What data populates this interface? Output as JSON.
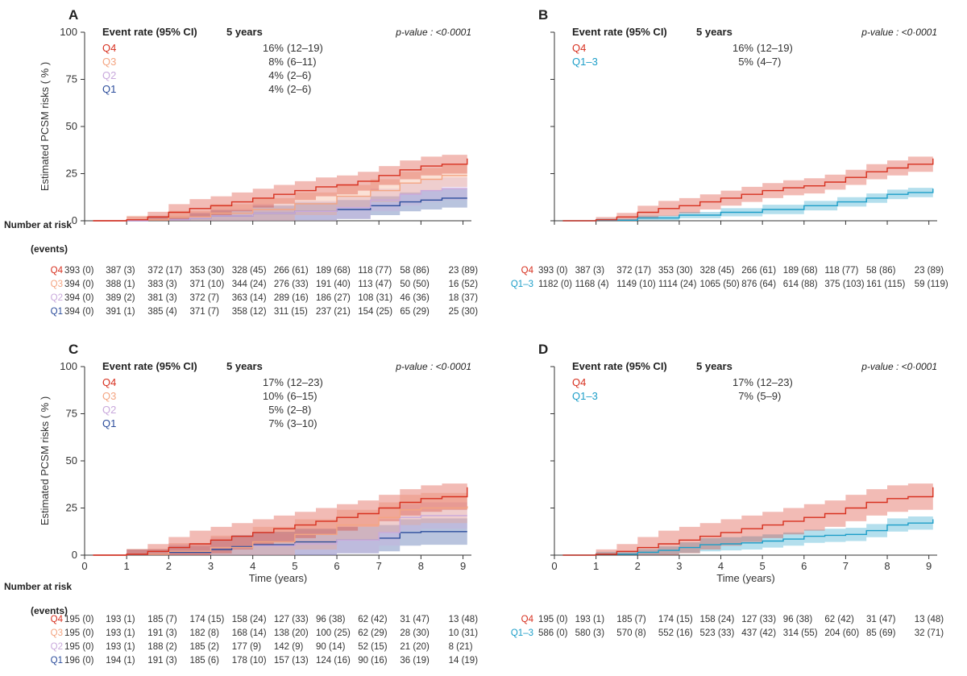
{
  "common": {
    "ylabel": "Estimated PCSM risks ( % )",
    "xlabel": "Time (years)",
    "risk_title_line1": "Number at risk",
    "risk_title_line2": "(events)",
    "header_event": "Event rate (95% CI)",
    "header_years": "5 years",
    "pvalue": "p-value : <0·0001"
  },
  "colors": {
    "Q4": "#d7301f",
    "Q3": "#f4a582",
    "Q2": "#c9a9dc",
    "Q1": "#2b4c9b",
    "Q1-3": "#1c9ec8"
  },
  "chart_data": [
    {
      "panel": "A",
      "type": "line",
      "xlim": [
        0,
        9.2
      ],
      "ylim": [
        0,
        100
      ],
      "yticks": [
        0,
        25,
        50,
        75,
        100
      ],
      "xticks": [],
      "show_xlabel": false,
      "legend": [
        {
          "label": "Q4",
          "rate": "16% (12–19)"
        },
        {
          "label": "Q3",
          "rate": "8% (6–11)"
        },
        {
          "label": "Q2",
          "rate": "4% (2–6)"
        },
        {
          "label": "Q1",
          "rate": "4% (2–6)"
        }
      ],
      "series": [
        {
          "name": "Q1",
          "x": [
            0.2,
            1.5,
            2.5,
            3,
            4,
            5,
            6,
            6.8,
            7.5,
            8,
            8.5,
            9.1
          ],
          "y": [
            0,
            0.5,
            1.5,
            2.5,
            4,
            5,
            6,
            8,
            10,
            11,
            12,
            12
          ],
          "band": 5
        },
        {
          "name": "Q2",
          "x": [
            0.2,
            1.5,
            2.5,
            3,
            4,
            5,
            6,
            6.8,
            7.5,
            8,
            8.5,
            9.1
          ],
          "y": [
            0,
            0.5,
            1.5,
            2.5,
            4,
            5,
            7,
            11,
            14,
            16,
            17,
            17
          ],
          "band": 6
        },
        {
          "name": "Q3",
          "x": [
            0.2,
            1,
            2,
            3,
            4,
            5,
            6,
            6.8,
            7.5,
            8,
            8.5,
            9.1
          ],
          "y": [
            0,
            0.5,
            2,
            4,
            6,
            9,
            13,
            16,
            20,
            22,
            24,
            24
          ],
          "band": 6
        },
        {
          "name": "Q4",
          "x": [
            0.2,
            1,
            1.5,
            2,
            2.5,
            3,
            3.5,
            4,
            4.5,
            5,
            5.5,
            6,
            6.5,
            7,
            7.5,
            8,
            8.5,
            9.1
          ],
          "y": [
            0,
            0.5,
            2,
            4.5,
            6.5,
            8,
            10,
            12,
            14,
            16,
            18,
            19,
            21,
            24,
            27,
            29,
            30,
            33
          ],
          "band": 5
        }
      ],
      "risk_table": [
        {
          "label": "Q4",
          "values": [
            "393 (0)",
            "387 (3)",
            "372 (17)",
            "353 (30)",
            "328 (45)",
            "266 (61)",
            "189 (68)",
            "118 (77)",
            "58 (86)",
            "23 (89)"
          ]
        },
        {
          "label": "Q3",
          "values": [
            "394 (0)",
            "388 (1)",
            "383 (3)",
            "371 (10)",
            "344 (24)",
            "276 (33)",
            "191 (40)",
            "113 (47)",
            "50 (50)",
            "16 (52)"
          ]
        },
        {
          "label": "Q2",
          "values": [
            "394 (0)",
            "389 (2)",
            "381 (3)",
            "372 (7)",
            "363 (14)",
            "289 (16)",
            "186 (27)",
            "108 (31)",
            "46 (36)",
            "18 (37)"
          ]
        },
        {
          "label": "Q1",
          "values": [
            "394 (0)",
            "391 (1)",
            "385 (4)",
            "371 (7)",
            "358 (12)",
            "311 (15)",
            "237 (21)",
            "154 (25)",
            "65 (29)",
            "25 (30)"
          ]
        }
      ]
    },
    {
      "panel": "B",
      "type": "line",
      "xlim": [
        0,
        9.2
      ],
      "ylim": [
        0,
        100
      ],
      "yticks": [
        0,
        25,
        50,
        75,
        100
      ],
      "xticks": [],
      "show_xlabel": false,
      "legend": [
        {
          "label": "Q4",
          "rate": "16% (12–19)"
        },
        {
          "label": "Q1–3",
          "rate": "5% (4–7)"
        }
      ],
      "series": [
        {
          "name": "Q1-3",
          "x": [
            0.2,
            1,
            2,
            3,
            4,
            5,
            6,
            6.8,
            7.5,
            8,
            8.5,
            9.1
          ],
          "y": [
            0,
            0.3,
            1.5,
            3,
            4.5,
            6,
            8,
            10,
            12,
            14,
            15,
            17
          ],
          "band": 2.5
        },
        {
          "name": "Q4",
          "x": [
            0.2,
            1,
            1.5,
            2,
            2.5,
            3,
            3.5,
            4,
            4.5,
            5,
            5.5,
            6,
            6.5,
            7,
            7.5,
            8,
            8.5,
            9.1
          ],
          "y": [
            0,
            0.5,
            2,
            4.5,
            6.5,
            8,
            10,
            12,
            14,
            16,
            17.5,
            18.5,
            20.5,
            23,
            26,
            28,
            30,
            33
          ],
          "band": 4
        }
      ],
      "risk_table": [
        {
          "label": "Q4",
          "values": [
            "393 (0)",
            "387 (3)",
            "372 (17)",
            "353 (30)",
            "328 (45)",
            "266 (61)",
            "189 (68)",
            "118 (77)",
            "58 (86)",
            "23 (89)"
          ]
        },
        {
          "label": "Q1–3",
          "values": [
            "1182 (0)",
            "1168 (4)",
            "1149 (10)",
            "1114 (24)",
            "1065 (50)",
            "876 (64)",
            "614 (88)",
            "375 (103)",
            "161 (115)",
            "59 (119)"
          ]
        }
      ]
    },
    {
      "panel": "C",
      "type": "line",
      "xlim": [
        0,
        9.2
      ],
      "ylim": [
        0,
        100
      ],
      "yticks": [
        0,
        25,
        50,
        75,
        100
      ],
      "xticks": [
        0,
        1,
        2,
        3,
        4,
        5,
        6,
        7,
        8,
        9
      ],
      "show_xlabel": true,
      "legend": [
        {
          "label": "Q4",
          "rate": "17% (12–23)"
        },
        {
          "label": "Q3",
          "rate": "10% (6–15)"
        },
        {
          "label": "Q2",
          "rate": "5% (2–8)"
        },
        {
          "label": "Q1",
          "rate": "7% (3–10)"
        }
      ],
      "series": [
        {
          "name": "Q1",
          "x": [
            0.2,
            1,
            2,
            3,
            3.5,
            4,
            5,
            6,
            7,
            7.5,
            8,
            9.1
          ],
          "y": [
            0,
            0.5,
            1.5,
            3,
            4.5,
            5.5,
            7,
            8,
            9,
            12,
            12.5,
            12.5
          ],
          "band": 7
        },
        {
          "name": "Q2",
          "x": [
            0.2,
            1,
            2,
            3,
            4,
            5,
            6,
            7,
            7.5,
            8,
            9.1
          ],
          "y": [
            0,
            0.5,
            2,
            4,
            5,
            6,
            8,
            12,
            20,
            21,
            21
          ],
          "band": 7
        },
        {
          "name": "Q3",
          "x": [
            0.2,
            1,
            2,
            3,
            4,
            5,
            6,
            7,
            7.5,
            8,
            9.1
          ],
          "y": [
            0,
            0.5,
            2,
            4,
            7,
            11,
            16,
            20,
            24,
            25,
            26
          ],
          "band": 8
        },
        {
          "name": "Q4",
          "x": [
            0.2,
            1,
            1.5,
            2,
            2.5,
            3,
            3.5,
            4,
            4.5,
            5,
            5.5,
            6,
            6.5,
            7,
            7.5,
            8,
            8.5,
            9.1
          ],
          "y": [
            0,
            0.5,
            2,
            4,
            6,
            8,
            10,
            12,
            14,
            16,
            18,
            20,
            22,
            25,
            28,
            30,
            31,
            36
          ],
          "band": 7
        }
      ],
      "risk_table": [
        {
          "label": "Q4",
          "values": [
            "195 (0)",
            "193 (1)",
            "185 (7)",
            "174 (15)",
            "158 (24)",
            "127 (33)",
            "96 (38)",
            "62 (42)",
            "31 (47)",
            "13 (48)"
          ]
        },
        {
          "label": "Q3",
          "values": [
            "195 (0)",
            "193 (1)",
            "191 (3)",
            "182 (8)",
            "168 (14)",
            "138 (20)",
            "100 (25)",
            "62 (29)",
            "28 (30)",
            "10 (31)"
          ]
        },
        {
          "label": "Q2",
          "values": [
            "195 (0)",
            "193 (1)",
            "188 (2)",
            "185 (2)",
            "177 (9)",
            "142 (9)",
            "90 (14)",
            "52 (15)",
            "21 (20)",
            "8 (21)"
          ]
        },
        {
          "label": "Q1",
          "values": [
            "196 (0)",
            "194 (1)",
            "191 (3)",
            "185 (6)",
            "178 (10)",
            "157 (13)",
            "124 (16)",
            "90 (16)",
            "36 (19)",
            "14 (19)"
          ]
        }
      ]
    },
    {
      "panel": "D",
      "type": "line",
      "xlim": [
        0,
        9.2
      ],
      "ylim": [
        0,
        100
      ],
      "yticks": [
        0,
        25,
        50,
        75,
        100
      ],
      "xticks": [
        0,
        1,
        2,
        3,
        4,
        5,
        6,
        7,
        8,
        9
      ],
      "show_xlabel": true,
      "legend": [
        {
          "label": "Q4",
          "rate": "17% (12–23)"
        },
        {
          "label": "Q1–3",
          "rate": "7% (5–9)"
        }
      ],
      "series": [
        {
          "name": "Q1-3",
          "x": [
            0.2,
            1,
            2,
            2.5,
            3,
            3.5,
            4,
            4.5,
            5,
            5.5,
            6,
            6.5,
            7,
            7.5,
            8,
            8.5,
            9.1
          ],
          "y": [
            0,
            0.5,
            1.5,
            2.5,
            4,
            5.5,
            6,
            6.5,
            7.5,
            8.5,
            10,
            10.5,
            11,
            13,
            16,
            17,
            19
          ],
          "band": 3.5
        },
        {
          "name": "Q4",
          "x": [
            0.2,
            1,
            1.5,
            2,
            2.5,
            3,
            3.5,
            4,
            4.5,
            5,
            5.5,
            6,
            6.5,
            7,
            7.5,
            8,
            8.5,
            9.1
          ],
          "y": [
            0,
            0.5,
            2,
            4,
            6,
            8,
            10,
            12,
            14,
            16,
            18,
            20,
            22,
            25,
            28,
            30,
            31,
            36
          ],
          "band": 7
        }
      ],
      "risk_table": [
        {
          "label": "Q4",
          "values": [
            "195 (0)",
            "193 (1)",
            "185 (7)",
            "174 (15)",
            "158 (24)",
            "127 (33)",
            "96 (38)",
            "62 (42)",
            "31 (47)",
            "13 (48)"
          ]
        },
        {
          "label": "Q1–3",
          "values": [
            "586 (0)",
            "580 (3)",
            "570 (8)",
            "552 (16)",
            "523 (33)",
            "437 (42)",
            "314 (55)",
            "204 (60)",
            "85 (69)",
            "32 (71)"
          ]
        }
      ]
    }
  ]
}
